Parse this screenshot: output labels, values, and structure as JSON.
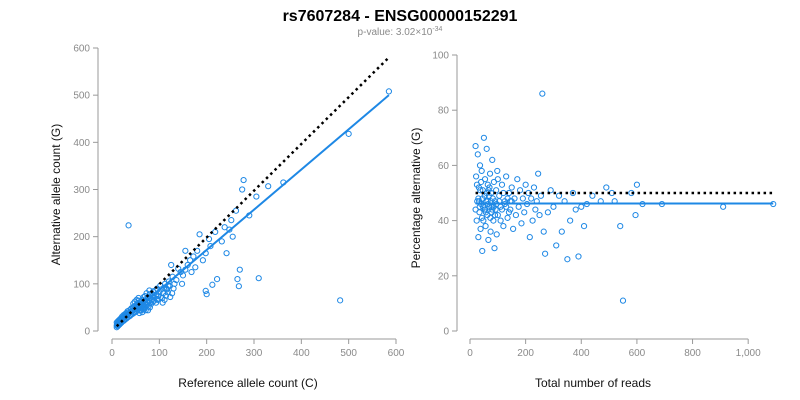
{
  "figure": {
    "title": "rs7607284 - ENSG00000152291",
    "subtitle": "p-value: 3.02×10",
    "subtitle_exp": "-34",
    "point_color": "#1e88e5",
    "fit_color": "#1e88e5",
    "reference_line_color": "#000000"
  },
  "chart_data": [
    {
      "type": "scatter",
      "xlabel": "Reference allele count (C)",
      "ylabel": "Alternative allele count (G)",
      "xlim": [
        0,
        600
      ],
      "ylim": [
        0,
        600
      ],
      "xticks": [
        0,
        100,
        200,
        300,
        400,
        500,
        600
      ],
      "yticks": [
        0,
        100,
        200,
        300,
        400,
        500,
        600
      ],
      "xtick_labels": [
        "0",
        "100",
        "200",
        "300",
        "400",
        "500",
        "600"
      ],
      "ytick_labels": [
        "0",
        "100",
        "200",
        "300",
        "400",
        "500",
        "600"
      ],
      "grid": false,
      "fit_line": {
        "from": [
          10,
          10
        ],
        "to": [
          585,
          500
        ]
      },
      "reference_line": {
        "from": [
          10,
          10
        ],
        "to": [
          585,
          580
        ],
        "style": "dotted"
      },
      "points": [
        [
          585,
          508
        ],
        [
          500,
          418
        ],
        [
          482,
          65
        ],
        [
          362,
          315
        ],
        [
          330,
          307
        ],
        [
          310,
          112
        ],
        [
          305,
          285
        ],
        [
          290,
          245
        ],
        [
          278,
          320
        ],
        [
          275,
          300
        ],
        [
          270,
          130
        ],
        [
          268,
          95
        ],
        [
          265,
          110
        ],
        [
          262,
          255
        ],
        [
          255,
          200
        ],
        [
          252,
          235
        ],
        [
          248,
          215
        ],
        [
          242,
          165
        ],
        [
          238,
          220
        ],
        [
          232,
          190
        ],
        [
          222,
          110
        ],
        [
          218,
          210
        ],
        [
          212,
          98
        ],
        [
          208,
          180
        ],
        [
          205,
          195
        ],
        [
          200,
          78
        ],
        [
          198,
          85
        ],
        [
          198,
          165
        ],
        [
          192,
          150
        ],
        [
          185,
          205
        ],
        [
          180,
          170
        ],
        [
          176,
          135
        ],
        [
          172,
          158
        ],
        [
          168,
          125
        ],
        [
          165,
          150
        ],
        [
          160,
          140
        ],
        [
          155,
          170
        ],
        [
          155,
          130
        ],
        [
          150,
          118
        ],
        [
          148,
          100
        ],
        [
          145,
          125
        ],
        [
          140,
          132
        ],
        [
          136,
          108
        ],
        [
          132,
          100
        ],
        [
          130,
          90
        ],
        [
          128,
          115
        ],
        [
          125,
          140
        ],
        [
          122,
          95
        ],
        [
          120,
          105
        ],
        [
          118,
          82
        ],
        [
          116,
          88
        ],
        [
          114,
          75
        ],
        [
          112,
          100
        ],
        [
          110,
          92
        ],
        [
          108,
          80
        ],
        [
          106,
          70
        ],
        [
          104,
          88
        ],
        [
          102,
          96
        ],
        [
          100,
          82
        ],
        [
          98,
          74
        ],
        [
          96,
          68
        ],
        [
          95,
          90
        ],
        [
          94,
          78
        ],
        [
          92,
          86
        ],
        [
          90,
          70
        ],
        [
          88,
          76
        ],
        [
          87,
          84
        ],
        [
          86,
          62
        ],
        [
          85,
          74
        ],
        [
          84,
          66
        ],
        [
          82,
          70
        ],
        [
          80,
          60
        ],
        [
          80,
          78
        ],
        [
          79,
          86
        ],
        [
          78,
          64
        ],
        [
          76,
          72
        ],
        [
          75,
          56
        ],
        [
          74,
          62
        ],
        [
          73,
          80
        ],
        [
          72,
          68
        ],
        [
          70,
          58
        ],
        [
          70,
          74
        ],
        [
          69,
          50
        ],
        [
          68,
          64
        ],
        [
          67,
          72
        ],
        [
          66,
          60
        ],
        [
          65,
          55
        ],
        [
          64,
          48
        ],
        [
          63,
          66
        ],
        [
          62,
          58
        ],
        [
          61,
          52
        ],
        [
          60,
          62
        ],
        [
          59,
          44
        ],
        [
          58,
          56
        ],
        [
          57,
          50
        ],
        [
          56,
          64
        ],
        [
          55,
          46
        ],
        [
          54,
          52
        ],
        [
          53,
          58
        ],
        [
          52,
          42
        ],
        [
          51,
          48
        ],
        [
          50,
          54
        ],
        [
          49,
          40
        ],
        [
          48,
          46
        ],
        [
          47,
          52
        ],
        [
          46,
          38
        ],
        [
          45,
          44
        ],
        [
          44,
          50
        ],
        [
          43,
          36
        ],
        [
          42,
          42
        ],
        [
          41,
          48
        ],
        [
          40,
          34
        ],
        [
          40,
          46
        ],
        [
          39,
          40
        ],
        [
          38,
          32
        ],
        [
          37,
          44
        ],
        [
          36,
          38
        ],
        [
          35,
          30
        ],
        [
          35,
          224
        ],
        [
          34,
          36
        ],
        [
          33,
          42
        ],
        [
          32,
          28
        ],
        [
          31,
          34
        ],
        [
          30,
          38
        ],
        [
          30,
          26
        ],
        [
          29,
          32
        ],
        [
          28,
          36
        ],
        [
          27,
          24
        ],
        [
          26,
          30
        ],
        [
          25,
          34
        ],
        [
          25,
          22
        ],
        [
          24,
          28
        ],
        [
          23,
          32
        ],
        [
          22,
          20
        ],
        [
          22,
          26
        ],
        [
          21,
          30
        ],
        [
          20,
          18
        ],
        [
          20,
          24
        ],
        [
          19,
          22
        ],
        [
          18,
          26
        ],
        [
          18,
          16
        ],
        [
          17,
          20
        ],
        [
          16,
          24
        ],
        [
          16,
          14
        ],
        [
          15,
          18
        ],
        [
          14,
          22
        ],
        [
          14,
          12
        ],
        [
          13,
          16
        ],
        [
          12,
          20
        ],
        [
          12,
          10
        ],
        [
          11,
          14
        ],
        [
          10,
          18
        ],
        [
          10,
          12
        ],
        [
          10,
          8
        ],
        [
          58,
          38
        ],
        [
          62,
          44
        ],
        [
          66,
          50
        ],
        [
          71,
          44
        ],
        [
          77,
          52
        ],
        [
          83,
          58
        ],
        [
          89,
          64
        ],
        [
          93,
          60
        ],
        [
          97,
          66
        ],
        [
          103,
          72
        ],
        [
          107,
          60
        ],
        [
          111,
          66
        ],
        [
          115,
          90
        ],
        [
          119,
          96
        ],
        [
          123,
          72
        ],
        [
          127,
          80
        ],
        [
          45,
          58
        ],
        [
          48,
          62
        ],
        [
          52,
          66
        ],
        [
          56,
          70
        ],
        [
          60,
          48
        ],
        [
          64,
          40
        ],
        [
          68,
          46
        ],
        [
          72,
          52
        ],
        [
          76,
          44
        ],
        [
          80,
          50
        ]
      ]
    },
    {
      "type": "scatter",
      "xlabel": "Total number of reads",
      "ylabel": "Percentage alternative (G)",
      "xlim": [
        0,
        1100
      ],
      "ylim": [
        0,
        100
      ],
      "xticks": [
        0,
        200,
        400,
        600,
        800,
        1000
      ],
      "yticks": [
        0,
        20,
        40,
        60,
        80,
        100
      ],
      "xtick_labels": [
        "0",
        "200",
        "400",
        "600",
        "800",
        "1,000"
      ],
      "ytick_labels": [
        "0",
        "20",
        "40",
        "60",
        "80",
        "100"
      ],
      "grid": false,
      "fit_line": {
        "from": [
          20,
          46.2
        ],
        "to": [
          1090,
          46.2
        ]
      },
      "reference_line": {
        "from": [
          20,
          50
        ],
        "to": [
          1090,
          50
        ],
        "style": "dotted"
      },
      "points": [
        [
          1090,
          46
        ],
        [
          910,
          45
        ],
        [
          690,
          46
        ],
        [
          620,
          46
        ],
        [
          600,
          53
        ],
        [
          595,
          42
        ],
        [
          580,
          50
        ],
        [
          550,
          11
        ],
        [
          540,
          38
        ],
        [
          520,
          47
        ],
        [
          510,
          50
        ],
        [
          490,
          52
        ],
        [
          470,
          47
        ],
        [
          440,
          49
        ],
        [
          420,
          46
        ],
        [
          410,
          38
        ],
        [
          400,
          45
        ],
        [
          390,
          27
        ],
        [
          380,
          44
        ],
        [
          370,
          50
        ],
        [
          360,
          40
        ],
        [
          350,
          26
        ],
        [
          340,
          47
        ],
        [
          330,
          36
        ],
        [
          320,
          49
        ],
        [
          310,
          31
        ],
        [
          300,
          45
        ],
        [
          290,
          51
        ],
        [
          280,
          43
        ],
        [
          270,
          28
        ],
        [
          265,
          36
        ],
        [
          260,
          86
        ],
        [
          255,
          49
        ],
        [
          250,
          42
        ],
        [
          245,
          57
        ],
        [
          240,
          47
        ],
        [
          235,
          44
        ],
        [
          230,
          52
        ],
        [
          225,
          40
        ],
        [
          220,
          48
        ],
        [
          215,
          34
        ],
        [
          210,
          50
        ],
        [
          205,
          46
        ],
        [
          200,
          53
        ],
        [
          195,
          43
        ],
        [
          190,
          48
        ],
        [
          185,
          39
        ],
        [
          180,
          51
        ],
        [
          175,
          45
        ],
        [
          170,
          55
        ],
        [
          165,
          42
        ],
        [
          160,
          48
        ],
        [
          155,
          37
        ],
        [
          150,
          52
        ],
        [
          145,
          44
        ],
        [
          140,
          50
        ],
        [
          135,
          41
        ],
        [
          130,
          56
        ],
        [
          125,
          47
        ],
        [
          120,
          38
        ],
        [
          115,
          53
        ],
        [
          110,
          45
        ],
        [
          105,
          49
        ],
        [
          100,
          42
        ],
        [
          98,
          58
        ],
        [
          96,
          35
        ],
        [
          94,
          51
        ],
        [
          92,
          44
        ],
        [
          90,
          47
        ],
        [
          88,
          30
        ],
        [
          86,
          54
        ],
        [
          84,
          40
        ],
        [
          82,
          48
        ],
        [
          80,
          62
        ],
        [
          78,
          43
        ],
        [
          76,
          50
        ],
        [
          74,
          36
        ],
        [
          72,
          57
        ],
        [
          70,
          45
        ],
        [
          68,
          49
        ],
        [
          66,
          33
        ],
        [
          64,
          53
        ],
        [
          62,
          42
        ],
        [
          60,
          66
        ],
        [
          58,
          47
        ],
        [
          56,
          38
        ],
        [
          54,
          55
        ],
        [
          52,
          44
        ],
        [
          50,
          70
        ],
        [
          48,
          40
        ],
        [
          46,
          51
        ],
        [
          44,
          29
        ],
        [
          42,
          58
        ],
        [
          40,
          46
        ],
        [
          38,
          37
        ],
        [
          36,
          60
        ],
        [
          34,
          43
        ],
        [
          32,
          52
        ],
        [
          30,
          34
        ],
        [
          28,
          64
        ],
        [
          26,
          47
        ],
        [
          24,
          40
        ],
        [
          22,
          56
        ],
        [
          20,
          44
        ],
        [
          20,
          67
        ],
        [
          25,
          53
        ],
        [
          30,
          48
        ],
        [
          35,
          45
        ],
        [
          40,
          54
        ],
        [
          45,
          48
        ],
        [
          55,
          44
        ],
        [
          65,
          46
        ],
        [
          75,
          47
        ],
        [
          85,
          45
        ],
        [
          95,
          46
        ],
        [
          105,
          47
        ],
        [
          115,
          44
        ],
        [
          125,
          46
        ],
        [
          135,
          48
        ],
        [
          145,
          47
        ],
        [
          60,
          50
        ],
        [
          70,
          52
        ],
        [
          80,
          44
        ],
        [
          90,
          42
        ],
        [
          100,
          55
        ],
        [
          110,
          40
        ],
        [
          120,
          50
        ],
        [
          130,
          45
        ],
        [
          140,
          43
        ],
        [
          150,
          47
        ],
        [
          33,
          47
        ],
        [
          37,
          51
        ],
        [
          43,
          41
        ],
        [
          47,
          45
        ],
        [
          53,
          49
        ],
        [
          57,
          43
        ],
        [
          63,
          47
        ],
        [
          67,
          51
        ],
        [
          73,
          41
        ],
        [
          77,
          45
        ]
      ]
    }
  ]
}
